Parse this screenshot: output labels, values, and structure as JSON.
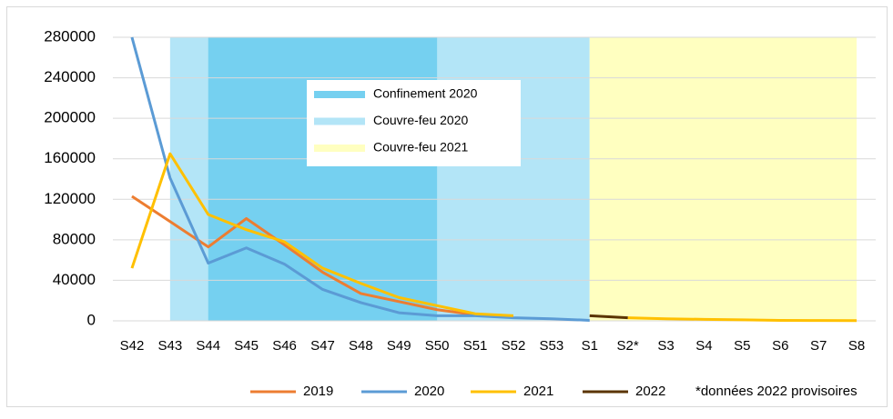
{
  "chart_data": {
    "type": "line",
    "categories": [
      "S42",
      "S43",
      "S44",
      "S45",
      "S46",
      "S47",
      "S48",
      "S49",
      "S50",
      "S51",
      "S52",
      "S53",
      "S1",
      "S2*",
      "S3",
      "S4",
      "S5",
      "S6",
      "S7",
      "S8"
    ],
    "series": [
      {
        "name": "2019",
        "color": "#ed7d31",
        "values": [
          123000,
          98000,
          73000,
          101000,
          75000,
          48000,
          27000,
          19000,
          11000,
          6000,
          4000,
          null,
          null,
          null,
          null,
          null,
          null,
          null,
          null,
          null
        ]
      },
      {
        "name": "2020",
        "color": "#5b9bd5",
        "values": [
          280000,
          141000,
          57000,
          72000,
          56000,
          31000,
          18000,
          8000,
          5000,
          5000,
          3000,
          2000,
          500,
          null,
          null,
          null,
          null,
          null,
          null,
          null
        ]
      },
      {
        "name": "2021",
        "color": "#ffc000",
        "values": [
          52000,
          165000,
          105000,
          90000,
          78000,
          52000,
          37000,
          23000,
          15000,
          7000,
          5000,
          null,
          null,
          3000,
          2000,
          1500,
          1000,
          500,
          300,
          200
        ]
      },
      {
        "name": "2022",
        "color": "#5a3400",
        "values": [
          null,
          null,
          null,
          null,
          null,
          null,
          null,
          null,
          null,
          null,
          null,
          null,
          5000,
          3000,
          null,
          null,
          null,
          null,
          null,
          null
        ]
      }
    ],
    "bands": [
      {
        "name": "Couvre-feu 2020",
        "color": "#b3e5f7",
        "from": "S43",
        "to": "S1"
      },
      {
        "name": "Confinement 2020",
        "color": "#75d0f0",
        "from": "S44",
        "to": "S50"
      },
      {
        "name": "Couvre-feu 2021",
        "color": "#ffffc0",
        "from": "S1",
        "to": "S8"
      }
    ],
    "annotation": "*données 2022 provisoires",
    "ylim": [
      0,
      280000
    ],
    "yticks": [
      0,
      40000,
      80000,
      120000,
      160000,
      200000,
      240000,
      280000
    ],
    "grid": true
  }
}
